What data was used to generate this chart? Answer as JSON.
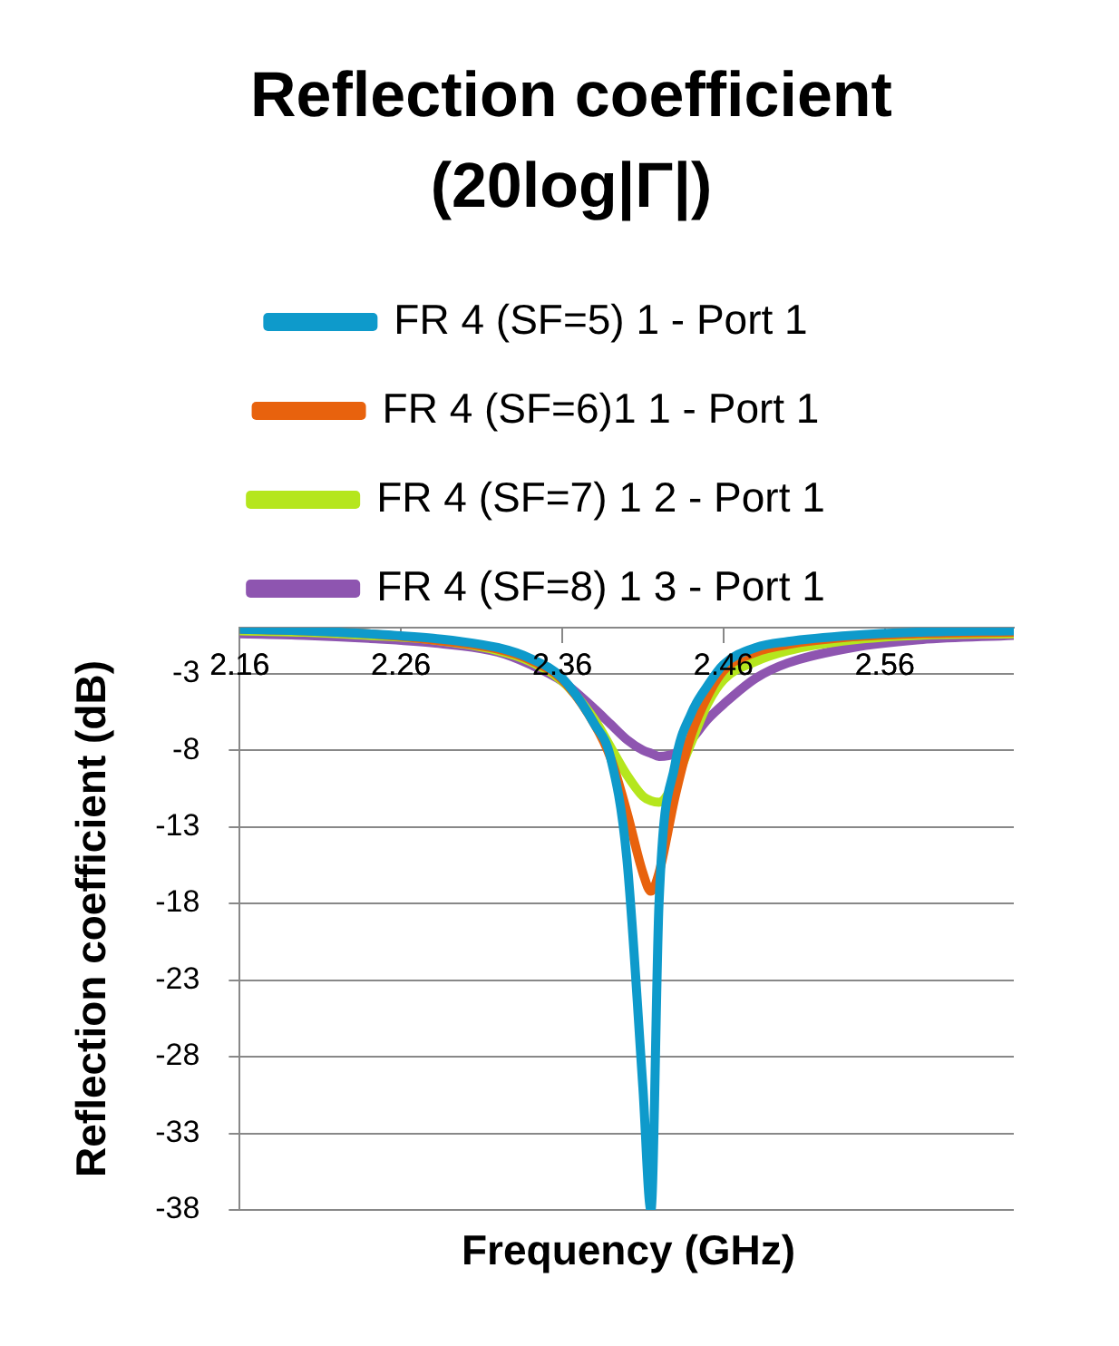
{
  "chart_data": {
    "type": "line",
    "title": "Reflection coefficient (20log|Γ|)",
    "xlabel": "Frequency (GHz)",
    "ylabel": "Reflection coefficient (dB)",
    "x": [
      2.16,
      2.2,
      2.24,
      2.28,
      2.32,
      2.34,
      2.36,
      2.38,
      2.39,
      2.4,
      2.41,
      2.415,
      2.42,
      2.43,
      2.44,
      2.45,
      2.46,
      2.48,
      2.5,
      2.54,
      2.58,
      2.64
    ],
    "series": [
      {
        "name": "FR 4 (SF=5) 1 - Port 1",
        "color": "#0e9acb",
        "values": [
          -0.1,
          -0.2,
          -0.4,
          -0.7,
          -1.3,
          -2.0,
          -3.3,
          -6.3,
          -8.5,
          -15,
          -30,
          -38,
          -18,
          -8.9,
          -5.6,
          -3.8,
          -2.4,
          -1.3,
          -0.9,
          -0.5,
          -0.3,
          -0.2
        ]
      },
      {
        "name": "FR 4 (SF=6)1 1 - Port 1",
        "color": "#e8620d",
        "values": [
          -0.1,
          -0.2,
          -0.4,
          -0.8,
          -1.4,
          -2.1,
          -3.4,
          -6.3,
          -8.5,
          -12,
          -16,
          -17.2,
          -16,
          -11,
          -7,
          -4.5,
          -2.8,
          -1.6,
          -1.1,
          -0.6,
          -0.4,
          -0.3
        ]
      },
      {
        "name": "FR 4 (SF=7) 1 2 - Port 1",
        "color": "#b5e61d",
        "values": [
          -0.2,
          -0.3,
          -0.5,
          -0.8,
          -1.5,
          -2.2,
          -3.5,
          -6,
          -7.8,
          -9.6,
          -11,
          -11.3,
          -11.4,
          -10,
          -7.5,
          -5,
          -3.4,
          -2.2,
          -1.5,
          -0.8,
          -0.5,
          -0.4
        ]
      },
      {
        "name": "FR 4 (SF=8) 1 3 - Port 1",
        "color": "#8e55b0",
        "values": [
          -0.4,
          -0.5,
          -0.7,
          -1.0,
          -1.6,
          -2.4,
          -3.5,
          -5.3,
          -6.3,
          -7.3,
          -8.0,
          -8.2,
          -8.4,
          -8.2,
          -7.3,
          -6.0,
          -5.0,
          -3.3,
          -2.3,
          -1.3,
          -0.8,
          -0.5
        ]
      }
    ],
    "xlim": [
      2.16,
      2.64
    ],
    "xticks": [
      2.16,
      2.26,
      2.36,
      2.46,
      2.56
    ],
    "ylim": [
      -38,
      0
    ],
    "yticks": [
      -38,
      -33,
      -28,
      -23,
      -18,
      -13,
      -8,
      -3
    ],
    "grid": "y",
    "legend": "top",
    "marker": "none",
    "line_style": "solid"
  }
}
